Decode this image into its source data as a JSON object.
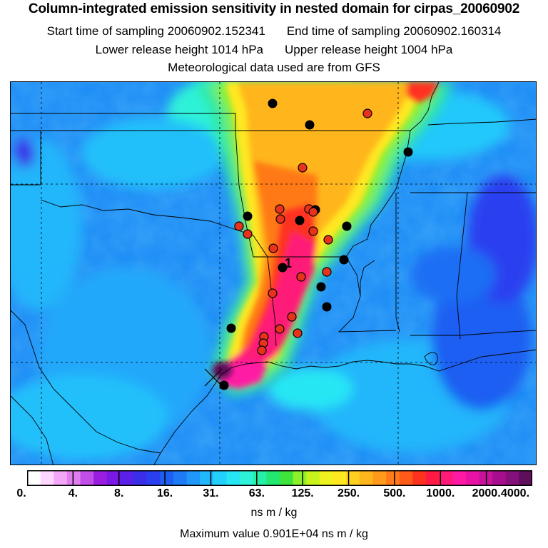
{
  "title": "Column-integrated emission sensitivity in nested domain for cirpas_20060902",
  "sampling": {
    "start": "Start time of sampling 20060902.152341",
    "end": "End time of sampling 20060902.160314"
  },
  "release": {
    "lower": "Lower release height 1014 hPa",
    "upper": "Upper release height 1004 hPa"
  },
  "met_data": "Meteorological data used are from GFS",
  "map": {
    "region": "Southern United States (Texas, Oklahoma, Arkansas, Louisiana) and Gulf of Mexico",
    "release_label": "1",
    "marker_colors": {
      "red": "#e8321c",
      "black": "#000000"
    }
  },
  "legend": {
    "ticks": [
      "0.",
      "4.",
      "8.",
      "16.",
      "31.",
      "63.",
      "125.",
      "250.",
      "500.",
      "1000.",
      "2000.",
      "4000."
    ],
    "unit": "ns m / kg",
    "colors": [
      "#ffffff",
      "#ffd6ff",
      "#f4a6f8",
      "#e07ef0",
      "#c24ee8",
      "#9a1ee0",
      "#7a18e6",
      "#5820e8",
      "#3a2ee8",
      "#2a40f0",
      "#1f5ef2",
      "#1f7af6",
      "#1f98fa",
      "#22b6fb",
      "#22d0fb",
      "#26e6f4",
      "#2ef2d8",
      "#24f0a8",
      "#22e870",
      "#3ce43c",
      "#8ef02a",
      "#c8f21c",
      "#eef21e",
      "#ffe820",
      "#ffd020",
      "#ffb61c",
      "#ff9a1a",
      "#ff7a18",
      "#ff5a18",
      "#ff3220",
      "#ff1a44",
      "#ff1a78",
      "#ff1aa4",
      "#ea12a4",
      "#c8129c",
      "#a60e8e",
      "#84107c",
      "#5e0e5a"
    ]
  },
  "max_value": "Maximum value  0.901E+04 ns m / kg"
}
